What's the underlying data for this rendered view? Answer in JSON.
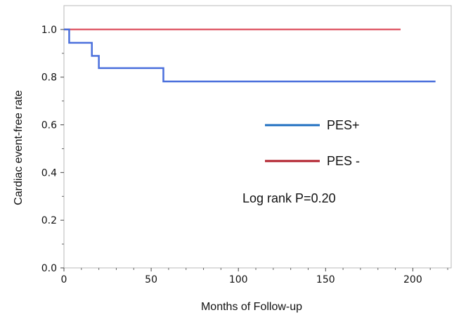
{
  "chart_data": {
    "type": "line",
    "title": "",
    "xlabel": "Months of Follow-up",
    "ylabel": "Cardiac event-free rate",
    "xlim": [
      0,
      222
    ],
    "ylim": [
      0,
      1.1
    ],
    "x_ticks": [
      0,
      50,
      100,
      150,
      200
    ],
    "x_tick_labels": [
      "0",
      "50",
      "100",
      "150",
      "200"
    ],
    "y_ticks": [
      0.0,
      0.2,
      0.4,
      0.6,
      0.8,
      1.0
    ],
    "y_tick_labels": [
      "0.0",
      "0.2",
      "0.4",
      "0.6",
      "0.8",
      "1.0"
    ],
    "grid": false,
    "legend_placement": "right",
    "series": [
      {
        "name": "PES+",
        "color": "#4a6fdc",
        "legend_color": "#1f6fc0",
        "step": true,
        "x": [
          0,
          3,
          16,
          20,
          57,
          213
        ],
        "y": [
          1.0,
          0.944,
          0.889,
          0.838,
          0.782,
          0.782
        ]
      },
      {
        "name": "PES -",
        "color": "#e0606e",
        "legend_color": "#b01e2a",
        "step": true,
        "x": [
          0,
          193
        ],
        "y": [
          1.0,
          1.0
        ]
      }
    ],
    "annotations": [
      "Log rank P=0.20"
    ]
  }
}
